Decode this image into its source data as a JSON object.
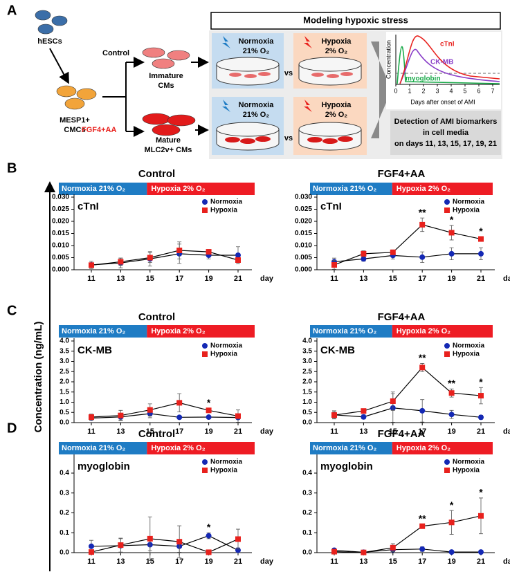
{
  "panels": [
    "A",
    "B",
    "C",
    "D"
  ],
  "diagram": {
    "hescs": "hESCs",
    "mesp1": [
      "MESP1+",
      "CMCs"
    ],
    "control": "Control",
    "fgf": "FGF4+AA",
    "immature": [
      "Immature",
      "CMs"
    ],
    "mature": [
      "Mature",
      "MLC2v+ CMs"
    ],
    "header": "Modeling hypoxic stress",
    "normoxia": [
      "Normoxia",
      "21% O₂"
    ],
    "hypoxia": [
      "Hypoxia",
      "2% O₂"
    ],
    "vs": "vs",
    "inset": {
      "curves": [
        "cTnI",
        "CK-MB",
        "myoglobin"
      ],
      "y_label": "Concentration",
      "x_label": "Days after onset of AMI",
      "xticks": [
        0,
        1,
        2,
        3,
        4,
        5,
        6,
        7
      ]
    },
    "detection": [
      "Detection of AMI biomarkers",
      "in cell media",
      "on days 11, 13, 15, 17, 19, 21"
    ]
  },
  "y_axis_label": "Concentration (ng/mL)",
  "chart_data": [
    {
      "type": "line",
      "title": "Control",
      "label": "cTnI",
      "phases": [
        "Normoxia 21% O₂",
        "Hypoxia 2% O₂"
      ],
      "phase_colors": [
        "#1f7cc4",
        "#ee1c24"
      ],
      "categories": [
        "11",
        "13",
        "15",
        "17",
        "19",
        "21"
      ],
      "x_unit": "day",
      "ylim": [
        0,
        0.03
      ],
      "yticks": [
        {
          "value": 0,
          "label": "0.000"
        },
        {
          "value": 0.005,
          "label": "0.005"
        },
        {
          "value": 0.01,
          "label": "0.010"
        },
        {
          "value": 0.015,
          "label": "0.015"
        },
        {
          "value": 0.02,
          "label": "0.020"
        },
        {
          "value": 0.025,
          "label": "0.025"
        },
        {
          "value": 0.03,
          "label": "0.030"
        }
      ],
      "series": [
        {
          "name": "Normoxia",
          "color": "#1428b4",
          "marker": "circle",
          "values": [
            0.002,
            0.0028,
            0.0045,
            0.0066,
            0.006,
            0.006
          ],
          "errors": [
            0.0015,
            0.002,
            0.003,
            0.004,
            0.0015,
            0.0035
          ]
        },
        {
          "name": "Hypoxia",
          "color": "#e8211d",
          "marker": "square",
          "values": [
            0.0019,
            0.0033,
            0.005,
            0.008,
            0.0074,
            0.004
          ],
          "errors": [
            0.001,
            0.0015,
            0.002,
            0.0035,
            0.001,
            0.001
          ]
        }
      ],
      "significance": [
        null,
        null,
        null,
        null,
        null,
        null
      ]
    },
    {
      "type": "line",
      "title": "FGF4+AA",
      "label": "cTnI",
      "phases": [
        "Normoxia 21% O₂",
        "Hypoxia 2% O₂"
      ],
      "phase_colors": [
        "#1f7cc4",
        "#ee1c24"
      ],
      "categories": [
        "11",
        "13",
        "15",
        "17",
        "19",
        "21"
      ],
      "x_unit": "day",
      "ylim": [
        0,
        0.03
      ],
      "yticks": [
        {
          "value": 0,
          "label": "0.000"
        },
        {
          "value": 0.005,
          "label": "0.005"
        },
        {
          "value": 0.01,
          "label": "0.010"
        },
        {
          "value": 0.015,
          "label": "0.015"
        },
        {
          "value": 0.02,
          "label": "0.020"
        },
        {
          "value": 0.025,
          "label": "0.025"
        },
        {
          "value": 0.03,
          "label": "0.030"
        }
      ],
      "series": [
        {
          "name": "Normoxia",
          "color": "#1428b4",
          "marker": "circle",
          "values": [
            0.0033,
            0.0045,
            0.0059,
            0.0052,
            0.0066,
            0.0066
          ],
          "errors": [
            0.0015,
            0.001,
            0.0015,
            0.0022,
            0.0025,
            0.0025
          ]
        },
        {
          "name": "Hypoxia",
          "color": "#e8211d",
          "marker": "square",
          "values": [
            0.002,
            0.0066,
            0.0072,
            0.0186,
            0.0153,
            0.0127
          ],
          "errors": [
            0.0018,
            0.0012,
            0.001,
            0.0028,
            0.003,
            0.001
          ]
        }
      ],
      "significance": [
        null,
        null,
        null,
        "**",
        "*",
        "*"
      ]
    },
    {
      "type": "line",
      "title": "Control",
      "label": "CK-MB",
      "phases": [
        "Normoxia 21% O₂",
        "Hypoxia 2% O₂"
      ],
      "phase_colors": [
        "#1f7cc4",
        "#ee1c24"
      ],
      "categories": [
        "11",
        "13",
        "15",
        "17",
        "19",
        "21"
      ],
      "x_unit": "day",
      "ylim": [
        0,
        4
      ],
      "yticks": [
        {
          "value": 0,
          "label": "0.0"
        },
        {
          "value": 0.5,
          "label": "0.5"
        },
        {
          "value": 1,
          "label": "1.0"
        },
        {
          "value": 1.5,
          "label": "1.5"
        },
        {
          "value": 2,
          "label": "2.0"
        },
        {
          "value": 2.5,
          "label": "2.5"
        },
        {
          "value": 3,
          "label": "3.0"
        },
        {
          "value": 3.5,
          "label": "3.5"
        },
        {
          "value": 4,
          "label": "4.0"
        }
      ],
      "series": [
        {
          "name": "Normoxia",
          "color": "#1428b4",
          "marker": "circle",
          "values": [
            0.22,
            0.28,
            0.44,
            0.26,
            0.27,
            0.25
          ],
          "errors": [
            0.1,
            0.15,
            0.2,
            0.05,
            0.05,
            0.05
          ]
        },
        {
          "name": "Hypoxia",
          "color": "#e8211d",
          "marker": "square",
          "values": [
            0.27,
            0.35,
            0.62,
            0.97,
            0.6,
            0.32
          ],
          "errors": [
            0.15,
            0.25,
            0.3,
            0.45,
            0.1,
            0.3
          ]
        }
      ],
      "significance": [
        null,
        null,
        null,
        null,
        "*",
        null
      ]
    },
    {
      "type": "line",
      "title": "FGF4+AA",
      "label": "CK-MB",
      "phases": [
        "Normoxia 21% O₂",
        "Hypoxia 2% O₂"
      ],
      "phase_colors": [
        "#1f7cc4",
        "#ee1c24"
      ],
      "categories": [
        "11",
        "13",
        "15",
        "17",
        "19",
        "21"
      ],
      "x_unit": "day",
      "ylim": [
        0,
        4
      ],
      "yticks": [
        {
          "value": 0,
          "label": "0.0"
        },
        {
          "value": 0.5,
          "label": "0.5"
        },
        {
          "value": 1,
          "label": "1.0"
        },
        {
          "value": 1.5,
          "label": "1.5"
        },
        {
          "value": 2,
          "label": "2.0"
        },
        {
          "value": 2.5,
          "label": "2.5"
        },
        {
          "value": 3,
          "label": "3.0"
        },
        {
          "value": 3.5,
          "label": "3.5"
        },
        {
          "value": 4,
          "label": "4.0"
        }
      ],
      "series": [
        {
          "name": "Normoxia",
          "color": "#1428b4",
          "marker": "circle",
          "values": [
            0.38,
            0.28,
            0.72,
            0.58,
            0.4,
            0.26
          ],
          "errors": [
            0.2,
            0.1,
            0.7,
            0.55,
            0.2,
            0.1
          ]
        },
        {
          "name": "Hypoxia",
          "color": "#e8211d",
          "marker": "square",
          "values": [
            0.37,
            0.57,
            1.05,
            2.7,
            1.45,
            1.32
          ],
          "errors": [
            0.15,
            0.05,
            0.45,
            0.2,
            0.2,
            0.4
          ]
        }
      ],
      "significance": [
        null,
        null,
        null,
        "**",
        "**",
        "*"
      ]
    },
    {
      "type": "line",
      "title": "Control",
      "label": "myoglobin",
      "phases": [
        "Normoxia 21% O₂",
        "Hypoxia 2% O₂"
      ],
      "phase_colors": [
        "#1f7cc4",
        "#ee1c24"
      ],
      "categories": [
        "11",
        "13",
        "15",
        "17",
        "19",
        "21"
      ],
      "x_unit": "day",
      "ylim": [
        0,
        0.48
      ],
      "yticks": [
        {
          "value": 0,
          "label": "0.0"
        },
        0.1,
        0.2,
        0.3,
        0.4
      ],
      "series": [
        {
          "name": "Normoxia",
          "color": "#1428b4",
          "marker": "circle",
          "values": [
            0.032,
            0.035,
            0.04,
            0.032,
            0.085,
            0.012
          ],
          "errors": [
            0.03,
            0.035,
            0.03,
            0.03,
            0.015,
            0.012
          ]
        },
        {
          "name": "Hypoxia",
          "color": "#e8211d",
          "marker": "square",
          "values": [
            0.003,
            0.038,
            0.07,
            0.055,
            0.002,
            0.068
          ],
          "errors": [
            0.003,
            0.035,
            0.11,
            0.08,
            0.002,
            0.05
          ]
        }
      ],
      "significance": [
        null,
        null,
        null,
        null,
        "*",
        null
      ]
    },
    {
      "type": "line",
      "title": "FGF4+AA",
      "label": "myoglobin",
      "phases": [
        "Normoxia 21% O₂",
        "Hypoxia 2% O₂"
      ],
      "phase_colors": [
        "#1f7cc4",
        "#ee1c24"
      ],
      "categories": [
        "11",
        "13",
        "15",
        "17",
        "19",
        "21"
      ],
      "x_unit": "day",
      "ylim": [
        0,
        0.48
      ],
      "yticks": [
        {
          "value": 0,
          "label": "0.0"
        },
        0.1,
        0.2,
        0.3,
        0.4
      ],
      "series": [
        {
          "name": "Normoxia",
          "color": "#1428b4",
          "marker": "circle",
          "values": [
            0.012,
            0.002,
            0.015,
            0.018,
            0.003,
            0.003
          ],
          "errors": [
            0.01,
            0.002,
            0.01,
            0.012,
            0.003,
            0.002
          ]
        },
        {
          "name": "Hypoxia",
          "color": "#e8211d",
          "marker": "square",
          "values": [
            0.005,
            0.001,
            0.025,
            0.133,
            0.152,
            0.185
          ],
          "errors": [
            0.005,
            0.001,
            0.02,
            0.01,
            0.06,
            0.09
          ]
        }
      ],
      "significance": [
        null,
        null,
        null,
        "**",
        "*",
        "*"
      ]
    }
  ]
}
